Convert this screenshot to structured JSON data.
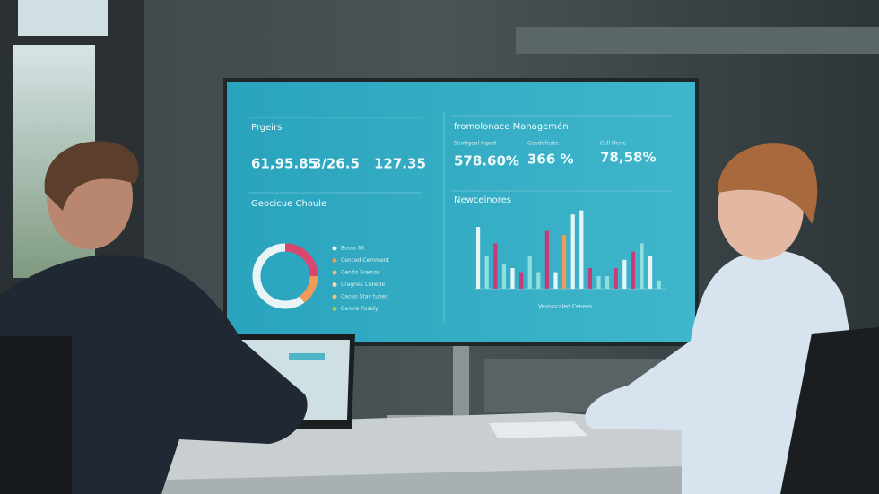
{
  "screen": {
    "left_panel": {
      "title": "Prgeirs",
      "metrics": [
        "61,95.85",
        "3/26.5",
        "127.35"
      ],
      "chart_title": "Geocicue Choule",
      "donut": {
        "values": [
          25,
          15,
          60
        ],
        "colors": [
          "#d9466e",
          "#ef9a58",
          "#e9f4f4"
        ]
      },
      "legend": [
        "Bosss Mt",
        "Cenced Cemment",
        "Cendo Sremos",
        "Cragnes Cullede",
        "Cacuo Stay tuoes",
        "Gerore Posidy"
      ],
      "legend_colors": [
        "#e9f4f4",
        "#ef9a58",
        "#f2b98c",
        "#f7d6b8",
        "#f4c27a",
        "#9fd05a"
      ]
    },
    "right_panel": {
      "title": "fromolonace Managemén",
      "metric_labels": [
        "Sentigeal Inpad",
        "Gevdefeate",
        "Cell Dene"
      ],
      "metrics": [
        "578.60%",
        "366 %",
        "78,58%"
      ],
      "chart_title": "Newceinores",
      "chart_caption": "Vevncicaled Ceneos",
      "bars": {
        "ylim": [
          0,
          100
        ],
        "values": [
          75,
          40,
          55,
          30,
          25,
          20,
          40,
          20,
          70,
          20,
          65,
          90,
          95,
          25,
          15,
          15,
          25,
          35,
          45,
          55,
          40,
          10
        ],
        "colors": [
          "#e6f6f6",
          "#8fe0dc",
          "#c43d7a",
          "#8fe0dc",
          "#e6f6f6",
          "#c43d7a",
          "#8fe0dc",
          "#8fe0dc",
          "#c43d7a",
          "#e6f6f6",
          "#ef9a58",
          "#e6f6f6",
          "#e6f6f6",
          "#c43d7a",
          "#8fe0dc",
          "#8fe0dc",
          "#c43d7a",
          "#e6f6f6",
          "#c43d7a",
          "#8fe0dc",
          "#e6f6f6",
          "#8fe0dc"
        ]
      }
    }
  }
}
